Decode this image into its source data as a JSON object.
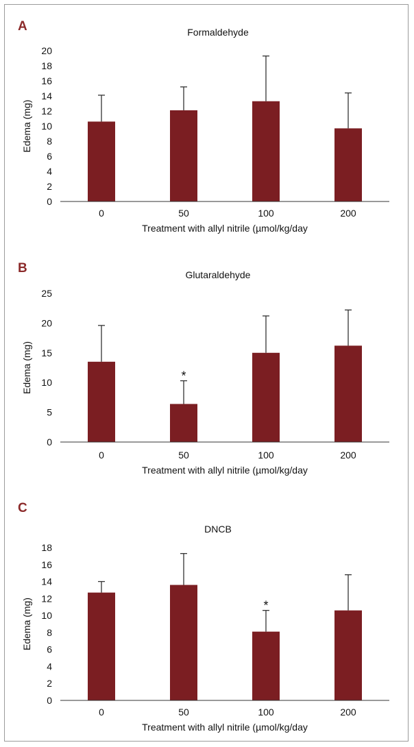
{
  "colors": {
    "bar": "#7b1e22",
    "panel_letter": "#8b2a2a",
    "axis": "#333333",
    "error_bar": "#333333"
  },
  "chart_data": [
    {
      "type": "bar",
      "panel": "A",
      "title": "Formaldehyde",
      "xlabel": "Treatment with allyl nitrile (µmol/kg/day",
      "ylabel": "Edema (mg)",
      "categories": [
        "0",
        "50",
        "100",
        "200"
      ],
      "values": [
        10.6,
        12.1,
        13.3,
        9.7
      ],
      "errors": [
        3.5,
        3.1,
        6.0,
        4.7
      ],
      "significance": [
        "",
        "",
        "",
        ""
      ],
      "ylim": [
        0,
        20
      ],
      "yticks": [
        0,
        2,
        4,
        6,
        8,
        10,
        12,
        14,
        16,
        18,
        20
      ],
      "grid": false,
      "legend": "none"
    },
    {
      "type": "bar",
      "panel": "B",
      "title": "Glutaraldehyde",
      "xlabel": "Treatment with allyl nitrile (µmol/kg/day",
      "ylabel": "Edema (mg)",
      "categories": [
        "0",
        "50",
        "100",
        "200"
      ],
      "values": [
        13.5,
        6.4,
        15.0,
        16.2
      ],
      "errors": [
        6.1,
        3.9,
        6.2,
        6.0
      ],
      "significance": [
        "",
        "*",
        "",
        ""
      ],
      "ylim": [
        0,
        25
      ],
      "yticks": [
        0,
        5,
        10,
        15,
        20,
        25
      ],
      "grid": false,
      "legend": "none"
    },
    {
      "type": "bar",
      "panel": "C",
      "title": "DNCB",
      "xlabel": "Treatment with allyl nitrile (µmol/kg/day",
      "ylabel": "Edema (mg)",
      "categories": [
        "0",
        "50",
        "100",
        "200"
      ],
      "values": [
        12.7,
        13.6,
        8.1,
        10.6
      ],
      "errors": [
        1.3,
        3.7,
        2.5,
        4.2
      ],
      "significance": [
        "",
        "",
        "*",
        ""
      ],
      "ylim": [
        0,
        18
      ],
      "yticks": [
        0,
        2,
        4,
        6,
        8,
        10,
        12,
        14,
        16,
        18
      ],
      "grid": false,
      "legend": "none"
    }
  ]
}
